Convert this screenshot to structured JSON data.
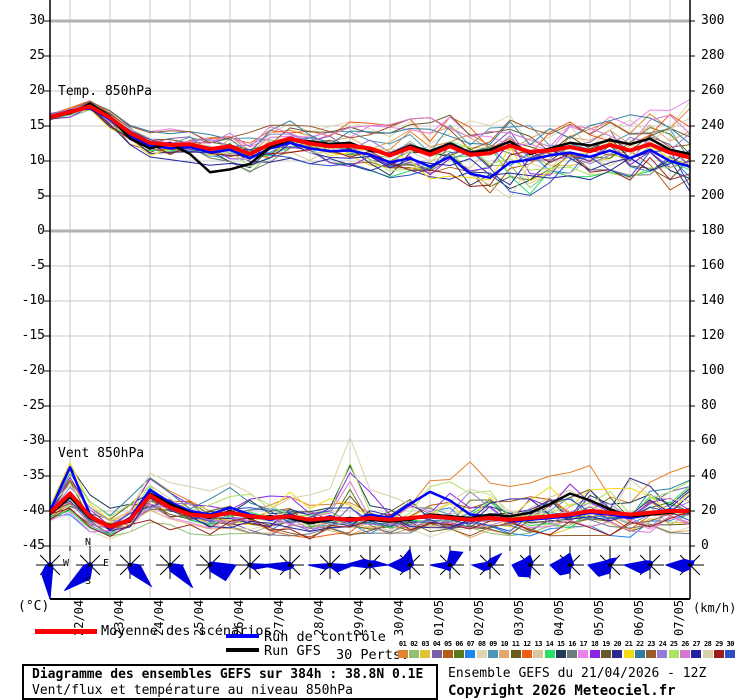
{
  "titles": {
    "temp_panel": "Temp. 850hPa",
    "wind_panel": "Vent 850hPa",
    "unit_left": "(°C)",
    "unit_right": "(km/h)"
  },
  "legend": {
    "mean_label": "Moyenne des scénarios",
    "control_label": "Run de contrôle",
    "gfs_label": "Run GFS",
    "perts_label": "30 Perts.",
    "mean_color": "#ff0000",
    "control_color": "#0000ff",
    "gfs_color": "#000000",
    "pert_numbers": [
      "01",
      "02",
      "03",
      "04",
      "05",
      "06",
      "07",
      "08",
      "09",
      "10",
      "11",
      "12",
      "13",
      "14",
      "15",
      "16",
      "17",
      "18",
      "19",
      "20",
      "21",
      "22",
      "23",
      "24",
      "25",
      "26",
      "27",
      "28",
      "29",
      "30"
    ],
    "pert_colors": [
      "#e2832f",
      "#8fc275",
      "#e0c431",
      "#7b5ea7",
      "#b35d15",
      "#5a7a1a",
      "#1c86ee",
      "#ded7ae",
      "#4a97b5",
      "#dfa96b",
      "#6d5b1c",
      "#ee5c15",
      "#d8c79c",
      "#2adf63",
      "#1e3c52",
      "#6e7b7b",
      "#ec80ec",
      "#8a25e4",
      "#6a592a",
      "#2a2a8f",
      "#f2d912",
      "#2f7ea2",
      "#985b2b",
      "#9579d9",
      "#abe561",
      "#d877d0",
      "#2222a0",
      "#d9d0a9",
      "#9c1c1c",
      "#2d4ec2"
    ]
  },
  "footer": {
    "box_title": "Diagramme des ensembles GEFS sur 384h : 38.8N 0.1E",
    "box_subtitle": "Vent/flux et température au niveau 850hPa",
    "run_info": "Ensemble GEFS du 21/04/2026 - 12Z",
    "copyright": "Copyright 2026 Meteociel.fr"
  },
  "chart_data": {
    "type": "line",
    "title": "Diagramme des ensembles GEFS sur 384h : 38.8N 0.1E",
    "subtitle": "Vent/flux et température au niveau 850hPa",
    "x_axis": {
      "total_hours": 384,
      "step_hours": 12,
      "start": "21/04 12Z",
      "day_labels": [
        "22/04",
        "23/04",
        "24/04",
        "25/04",
        "26/04",
        "27/04",
        "28/04",
        "29/04",
        "30/04",
        "01/05",
        "02/05",
        "03/05",
        "04/05",
        "05/05",
        "06/05",
        "07/05"
      ]
    },
    "left_axis": {
      "label": "(°C)",
      "min": -45,
      "max": 32.5,
      "ticks": [
        30,
        25,
        20,
        15,
        10,
        5,
        0,
        -5,
        -10,
        -15,
        -20,
        -25,
        -30,
        -35,
        -40,
        -45
      ]
    },
    "right_axis": {
      "label": "(km/h)",
      "min": 0,
      "max": 310,
      "ticks": [
        300,
        280,
        260,
        240,
        220,
        200,
        180,
        160,
        140,
        120,
        100,
        80,
        60,
        40,
        20,
        0
      ]
    },
    "grid": true,
    "legend_position": "bottom",
    "compass": {
      "n": "N",
      "e": "E",
      "s": "S",
      "w": "W"
    },
    "temperature_850hPa": {
      "unit": "°C",
      "mean": [
        16.3,
        17.0,
        17.8,
        16.2,
        14.0,
        12.6,
        12.3,
        12.4,
        11.7,
        12.1,
        11.0,
        12.4,
        13.2,
        12.5,
        12.1,
        12.2,
        11.8,
        10.8,
        11.9,
        10.9,
        12.1,
        10.9,
        11.1,
        12.2,
        11.3,
        11.5,
        12.0,
        11.4,
        12.3,
        11.5,
        12.4,
        11.2,
        10.5
      ],
      "control": [
        16.2,
        17.2,
        17.5,
        16.0,
        13.6,
        12.2,
        11.8,
        12.0,
        11.2,
        11.6,
        10.4,
        11.8,
        12.6,
        11.8,
        11.4,
        11.5,
        10.9,
        9.8,
        10.4,
        9.2,
        10.6,
        8.2,
        7.6,
        9.8,
        10.2,
        10.8,
        11.2,
        10.6,
        11.5,
        10.4,
        11.6,
        10.0,
        9.2
      ],
      "gfs": [
        16.4,
        16.8,
        18.2,
        16.4,
        13.2,
        11.8,
        12.5,
        11.0,
        8.4,
        8.8,
        9.6,
        12.0,
        13.0,
        12.8,
        12.4,
        12.6,
        11.5,
        11.0,
        12.2,
        11.4,
        12.5,
        11.2,
        11.6,
        12.8,
        11.0,
        11.8,
        12.6,
        12.2,
        13.0,
        12.4,
        13.2,
        11.6,
        11.0
      ],
      "env_max": [
        16.8,
        17.6,
        18.6,
        17.2,
        15.2,
        14.4,
        14.6,
        14.2,
        14.8,
        14.6,
        14.4,
        15.2,
        15.8,
        15.0,
        15.2,
        15.6,
        15.4,
        15.2,
        16.0,
        16.2,
        17.0,
        16.4,
        16.0,
        16.6,
        15.4,
        15.8,
        16.4,
        16.0,
        17.0,
        16.6,
        17.4,
        18.0,
        18.8
      ],
      "env_min": [
        15.8,
        16.2,
        17.2,
        14.6,
        12.0,
        10.4,
        10.2,
        9.8,
        9.4,
        9.0,
        8.2,
        9.6,
        10.4,
        9.6,
        9.0,
        9.2,
        8.6,
        7.6,
        8.0,
        7.0,
        7.4,
        5.6,
        4.2,
        3.4,
        4.8,
        6.4,
        7.2,
        6.8,
        7.6,
        7.0,
        7.4,
        5.6,
        4.2
      ]
    },
    "wind_850hPa": {
      "unit": "km/h",
      "mean": [
        19,
        30,
        17,
        11,
        15,
        29,
        22,
        18,
        17,
        19,
        17,
        16,
        17,
        15,
        16,
        15,
        16,
        15,
        16,
        17,
        16,
        15,
        16,
        15,
        16,
        17,
        18,
        20,
        19,
        18,
        19,
        20,
        20
      ],
      "control": [
        20,
        45,
        18,
        10,
        16,
        32,
        25,
        20,
        18,
        22,
        18,
        15,
        18,
        14,
        17,
        14,
        18,
        16,
        24,
        31,
        26,
        18,
        17,
        14,
        15,
        16,
        17,
        19,
        18,
        16,
        18,
        21,
        19
      ],
      "gfs": [
        18,
        28,
        16,
        12,
        14,
        30,
        24,
        19,
        16,
        20,
        16,
        17,
        16,
        13,
        15,
        16,
        15,
        14,
        15,
        18,
        17,
        16,
        18,
        17,
        19,
        24,
        30,
        26,
        21,
        17,
        18,
        19,
        21
      ],
      "env_max": [
        26,
        50,
        30,
        22,
        30,
        46,
        40,
        34,
        32,
        36,
        34,
        30,
        34,
        30,
        34,
        62,
        36,
        32,
        36,
        40,
        38,
        50,
        36,
        34,
        36,
        40,
        42,
        46,
        44,
        64,
        44,
        42,
        46
      ],
      "env_min": [
        13,
        16,
        8,
        4,
        6,
        12,
        9,
        7,
        6,
        7,
        6,
        5,
        5,
        4,
        5,
        4,
        5,
        4,
        5,
        5,
        5,
        4,
        5,
        4,
        5,
        5,
        6,
        6,
        6,
        5,
        6,
        6,
        7
      ]
    },
    "wind_roses": {
      "order": [
        "N",
        "NE",
        "E",
        "SE",
        "S",
        "SW",
        "W",
        "NW"
      ],
      "radii": [
        [
          3,
          2,
          3,
          4,
          34,
          12,
          4,
          2
        ],
        [
          3,
          2,
          3,
          3,
          14,
          36,
          6,
          2
        ],
        [
          2,
          2,
          10,
          30,
          8,
          3,
          2,
          2
        ],
        [
          2,
          2,
          12,
          32,
          6,
          2,
          2,
          2
        ],
        [
          3,
          4,
          26,
          22,
          6,
          2,
          2,
          2
        ],
        [
          2,
          2,
          28,
          6,
          2,
          2,
          3,
          2
        ],
        [
          3,
          2,
          4,
          4,
          4,
          8,
          30,
          4
        ],
        [
          2,
          2,
          24,
          10,
          2,
          6,
          22,
          2
        ],
        [
          4,
          6,
          18,
          3,
          3,
          4,
          26,
          8
        ],
        [
          16,
          4,
          4,
          2,
          4,
          10,
          22,
          10
        ],
        [
          14,
          18,
          4,
          2,
          6,
          6,
          20,
          4
        ],
        [
          6,
          16,
          4,
          2,
          4,
          8,
          18,
          4
        ],
        [
          10,
          4,
          3,
          2,
          12,
          16,
          18,
          8
        ],
        [
          12,
          4,
          4,
          2,
          8,
          14,
          20,
          10
        ],
        [
          6,
          10,
          2,
          2,
          8,
          16,
          22,
          6
        ],
        [
          4,
          4,
          2,
          2,
          4,
          12,
          26,
          6
        ],
        [
          4,
          6,
          3,
          2,
          4,
          10,
          24,
          8
        ]
      ],
      "rose_color": "#0000dd"
    },
    "colors": {
      "grid": "#c8c8c8",
      "grid_thick": "#b2b2b2",
      "frame": "#000000"
    }
  }
}
